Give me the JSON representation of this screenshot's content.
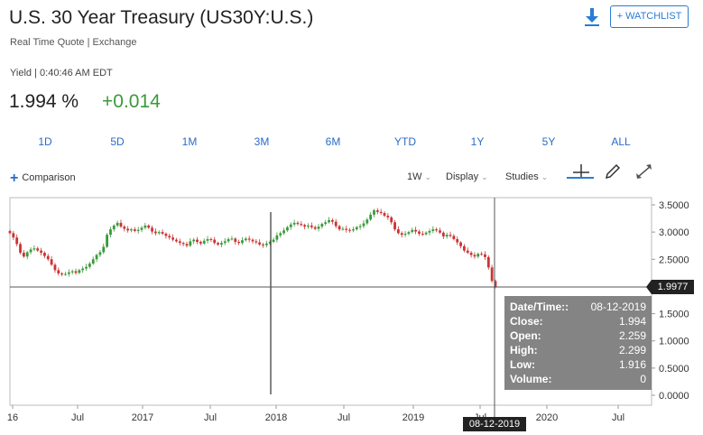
{
  "header": {
    "title": "U.S. 30 Year Treasury (US30Y:U.S.)",
    "subtitle": "Real Time Quote | Exchange",
    "watchlist_label": "+ WATCHLIST",
    "download_icon": "download-icon"
  },
  "quote": {
    "yield_line": "Yield | 0:40:46 AM EDT",
    "price": "1.994 %",
    "change": "+0.014",
    "change_color": "#3a9a3a"
  },
  "ranges": [
    "1D",
    "5D",
    "1M",
    "3M",
    "6M",
    "YTD",
    "1Y",
    "5Y",
    "ALL"
  ],
  "controls": {
    "comparison_label": "Comparison",
    "interval_label": "1W",
    "display_label": "Display",
    "studies_label": "Studies",
    "crosshair_icon": "crosshair-icon",
    "draw_icon": "pencil-icon",
    "expand_icon": "expand-icon"
  },
  "crosshair": {
    "price_label": "1.9977",
    "date_label": "08-12-2019"
  },
  "tooltip": {
    "rows": [
      {
        "label": "Date/Time::",
        "value": "08-12-2019"
      },
      {
        "label": "Close:",
        "value": "1.994"
      },
      {
        "label": "Open:",
        "value": "2.259"
      },
      {
        "label": "High:",
        "value": "2.299"
      },
      {
        "label": "Low:",
        "value": "1.916"
      },
      {
        "label": "Volume:",
        "value": "0"
      }
    ]
  },
  "chart_data": {
    "type": "candlestick",
    "interval": "weekly",
    "x_range": [
      "2016-06",
      "2019-10"
    ],
    "x_tick_labels": [
      "16",
      "Jul",
      "2017",
      "Jul",
      "2018",
      "Jul",
      "2019",
      "Jul",
      "2020",
      "Jul"
    ],
    "y_tick_labels": [
      "0.0000",
      "0.5000",
      "1.0000",
      "1.5000",
      "2.0000",
      "2.5000",
      "3.0000",
      "3.5000"
    ],
    "ylim": [
      0,
      3.6
    ],
    "up_color": "#3a9a3a",
    "down_color": "#cc3333",
    "closes": [
      2.98,
      2.9,
      2.78,
      2.62,
      2.55,
      2.63,
      2.68,
      2.7,
      2.66,
      2.62,
      2.56,
      2.5,
      2.4,
      2.3,
      2.24,
      2.22,
      2.23,
      2.26,
      2.28,
      2.25,
      2.3,
      2.33,
      2.36,
      2.42,
      2.5,
      2.58,
      2.63,
      2.73,
      2.95,
      3.05,
      3.12,
      3.17,
      3.1,
      3.06,
      3.03,
      3.05,
      3.02,
      3.04,
      3.08,
      3.12,
      3.08,
      3.01,
      2.98,
      3.0,
      2.97,
      2.93,
      2.9,
      2.86,
      2.83,
      2.8,
      2.78,
      2.75,
      2.83,
      2.86,
      2.82,
      2.79,
      2.84,
      2.87,
      2.86,
      2.8,
      2.77,
      2.8,
      2.83,
      2.87,
      2.88,
      2.82,
      2.8,
      2.85,
      2.88,
      2.86,
      2.83,
      2.81,
      2.77,
      2.76,
      2.79,
      2.82,
      2.86,
      2.94,
      2.98,
      3.03,
      3.09,
      3.14,
      3.17,
      3.15,
      3.13,
      3.1,
      3.12,
      3.09,
      3.06,
      3.1,
      3.15,
      3.18,
      3.22,
      3.19,
      3.11,
      3.05,
      3.06,
      3.04,
      3.03,
      3.05,
      3.09,
      3.11,
      3.16,
      3.23,
      3.32,
      3.4,
      3.37,
      3.35,
      3.3,
      3.27,
      3.18,
      3.05,
      2.98,
      2.95,
      2.97,
      3.0,
      3.04,
      3.01,
      2.97,
      2.96,
      2.99,
      3.02,
      3.05,
      3.03,
      2.99,
      2.92,
      2.95,
      2.93,
      2.87,
      2.81,
      2.74,
      2.66,
      2.62,
      2.58,
      2.55,
      2.6,
      2.59,
      2.54,
      2.35,
      2.1,
      1.99
    ]
  }
}
